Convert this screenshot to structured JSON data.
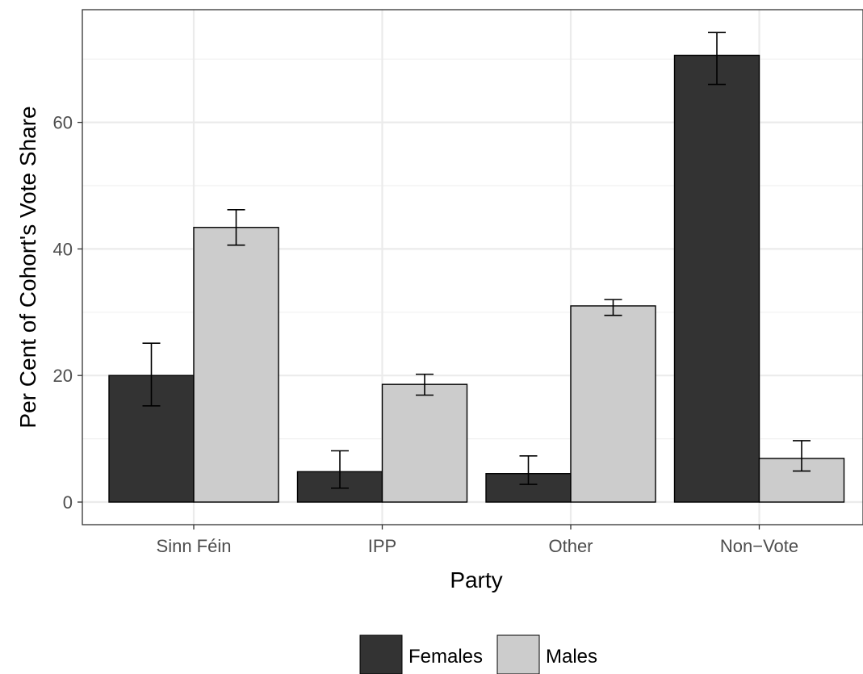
{
  "chart_data": {
    "type": "bar",
    "xlabel": "Party",
    "ylabel": "Per Cent of Cohort's Vote Share",
    "categories": [
      "Sinn Féin",
      "IPP",
      "Other",
      "Non−Vote"
    ],
    "yticks": [
      "0",
      "20",
      "40",
      "60"
    ],
    "ylim": [
      -3.5,
      78
    ],
    "grid": true,
    "legend_position": "bottom",
    "series": [
      {
        "name": "Females",
        "color": "#333333",
        "values": [
          20.0,
          4.8,
          4.5,
          70.6
        ],
        "error_low": [
          15.2,
          2.2,
          2.8,
          66.0
        ],
        "error_high": [
          25.1,
          8.1,
          7.3,
          74.2
        ]
      },
      {
        "name": "Males",
        "color": "#cccccc",
        "values": [
          43.4,
          18.6,
          31.0,
          6.9
        ],
        "error_low": [
          40.6,
          16.9,
          29.5,
          4.9
        ],
        "error_high": [
          46.2,
          20.2,
          32.0,
          9.7
        ]
      }
    ]
  }
}
